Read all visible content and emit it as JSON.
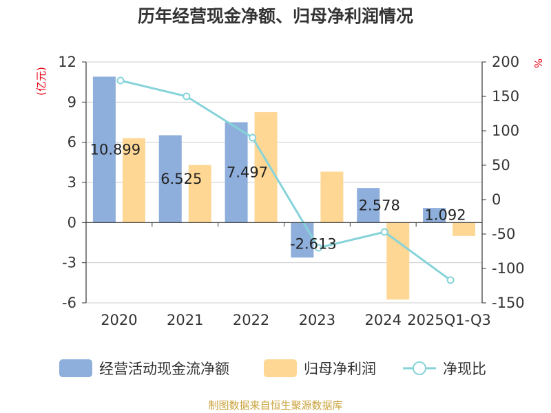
{
  "chart_data": {
    "type": "bar",
    "title": "历年经营现金净额、归母净利润情况",
    "categories": [
      "2020",
      "2021",
      "2022",
      "2023",
      "2024",
      "2025Q1-Q3"
    ],
    "y_left": {
      "label": "(亿元)",
      "lim": [
        -6,
        12
      ],
      "ticks": [
        -6,
        -3,
        0,
        3,
        6,
        9,
        12
      ]
    },
    "y_right": {
      "label": "%",
      "lim": [
        -150,
        200
      ],
      "ticks": [
        -150,
        -100,
        -50,
        0,
        50,
        100,
        150,
        200
      ]
    },
    "series": [
      {
        "name": "经营活动现金流净额",
        "kind": "bar",
        "axis": "left",
        "color": "#8eaedb",
        "values": [
          10.899,
          6.525,
          7.497,
          -2.613,
          2.578,
          1.092
        ],
        "labels": [
          "10.899",
          "6.525",
          "7.497",
          "-2.613",
          "2.578",
          "1.092"
        ]
      },
      {
        "name": "归母净利润",
        "kind": "bar",
        "axis": "left",
        "color": "#fed795",
        "values": [
          6.3,
          4.3,
          8.25,
          3.8,
          -5.75,
          -1.0
        ]
      },
      {
        "name": "净现比",
        "kind": "line",
        "axis": "right",
        "color": "#86d3da",
        "values": [
          173,
          150,
          90,
          -70,
          -47,
          -117
        ]
      }
    ],
    "legend_position": "bottom",
    "grid": true
  },
  "source": "制图数据来自恒生聚源数据库"
}
